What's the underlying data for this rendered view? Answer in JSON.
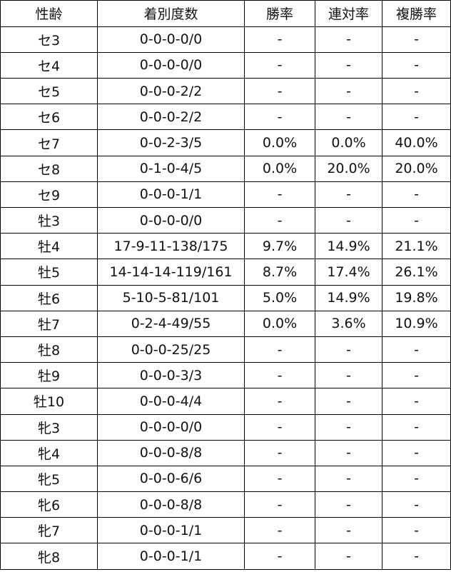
{
  "headers": [
    "性齢",
    "着別度数",
    "勝率",
    "連対率",
    "複勝率"
  ],
  "rows": [
    [
      "セ3",
      "0-0-0-0/0",
      "-",
      "-",
      "-"
    ],
    [
      "セ4",
      "0-0-0-0/0",
      "-",
      "-",
      "-"
    ],
    [
      "セ5",
      "0-0-0-2/2",
      "-",
      "-",
      "-"
    ],
    [
      "セ6",
      "0-0-0-2/2",
      "-",
      "-",
      "-"
    ],
    [
      "セ7",
      "0-0-2-3/5",
      "0.0%",
      "0.0%",
      "40.0%"
    ],
    [
      "セ8",
      "0-1-0-4/5",
      "0.0%",
      "20.0%",
      "20.0%"
    ],
    [
      "セ9",
      "0-0-0-1/1",
      "-",
      "-",
      "-"
    ],
    [
      "牡3",
      "0-0-0-0/0",
      "-",
      "-",
      "-"
    ],
    [
      "牡4",
      "17-9-11-138/175",
      "9.7%",
      "14.9%",
      "21.1%"
    ],
    [
      "牡5",
      "14-14-14-119/161",
      "8.7%",
      "17.4%",
      "26.1%"
    ],
    [
      "牡6",
      "5-10-5-81/101",
      "5.0%",
      "14.9%",
      "19.8%"
    ],
    [
      "牡7",
      "0-2-4-49/55",
      "0.0%",
      "3.6%",
      "10.9%"
    ],
    [
      "牡8",
      "0-0-0-25/25",
      "-",
      "-",
      "-"
    ],
    [
      "牡9",
      "0-0-0-3/3",
      "-",
      "-",
      "-"
    ],
    [
      "牡10",
      "0-0-0-4/4",
      "-",
      "-",
      "-"
    ],
    [
      "牝3",
      "0-0-0-0/0",
      "-",
      "-",
      "-"
    ],
    [
      "牝4",
      "0-0-0-8/8",
      "-",
      "-",
      "-"
    ],
    [
      "牝5",
      "0-0-0-6/6",
      "-",
      "-",
      "-"
    ],
    [
      "牝6",
      "0-0-0-8/8",
      "-",
      "-",
      "-"
    ],
    [
      "牝7",
      "0-0-0-1/1",
      "-",
      "-",
      "-"
    ],
    [
      "牝8",
      "0-0-0-1/1",
      "-",
      "-",
      "-"
    ]
  ]
}
